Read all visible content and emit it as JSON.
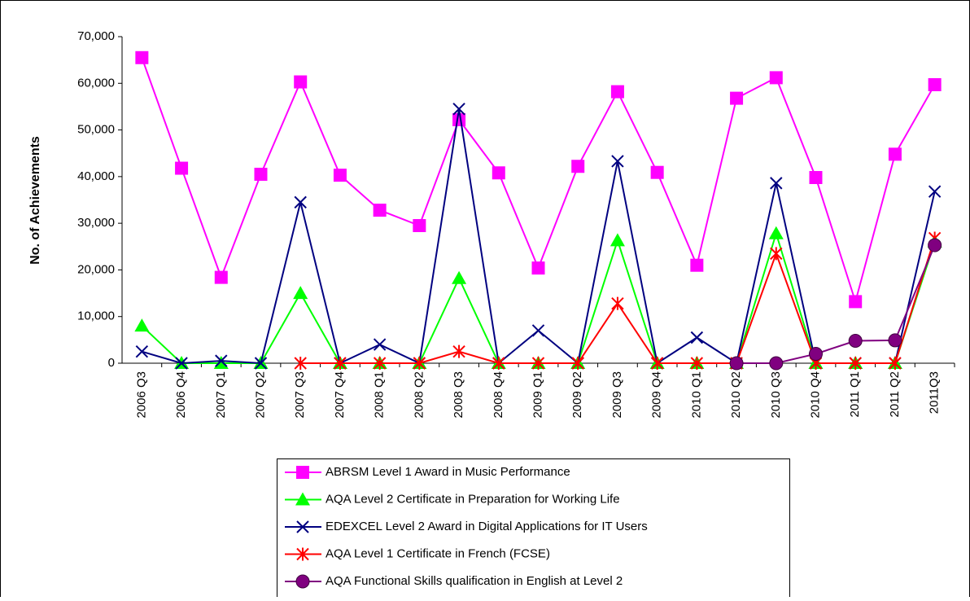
{
  "chart_data": {
    "type": "line",
    "y_label": "No. of Achievements",
    "categories": [
      "2006 Q3",
      "2006 Q4",
      "2007 Q1",
      "2007 Q2",
      "2007 Q3",
      "2007 Q4",
      "2008 Q1",
      "2008 Q2",
      "2008 Q3",
      "2008 Q4",
      "2009 Q1",
      "2009 Q2",
      "2009 Q3",
      "2009 Q4",
      "2010 Q1",
      "2010 Q2",
      "2010 Q3",
      "2010 Q4",
      "2011 Q1",
      "2011 Q2",
      "2011Q3"
    ],
    "ylim": [
      0,
      70000
    ],
    "yticks": [
      0,
      {
        "value": 10000,
        "label": "10,000"
      },
      {
        "value": 20000,
        "label": "20,000"
      },
      {
        "value": 30000,
        "label": "30,000"
      },
      {
        "value": 40000,
        "label": "40,000"
      },
      {
        "value": 50000,
        "label": "50,000"
      },
      {
        "value": 60000,
        "label": "60,000"
      },
      {
        "value": 70000,
        "label": "70,000"
      }
    ],
    "series": [
      {
        "name": "ABRSM Level 1 Award in Music Performance",
        "color": "#ff00ff",
        "marker": "square",
        "values": [
          65500,
          41800,
          18400,
          40500,
          60300,
          40300,
          32800,
          29500,
          52200,
          40800,
          20400,
          42200,
          58200,
          40900,
          21000,
          56800,
          61200,
          39800,
          13200,
          44800,
          59700
        ]
      },
      {
        "name": "AQA Level 2 Certificate in Preparation for Working Life",
        "color": "#00ff00",
        "marker": "triangle",
        "values": [
          8000,
          0,
          0,
          0,
          15000,
          0,
          0,
          0,
          18200,
          0,
          0,
          0,
          26300,
          0,
          0,
          0,
          27800,
          0,
          0,
          0,
          26000
        ]
      },
      {
        "name": "EDEXCEL Level 2 Award in Digital Applications for IT Users",
        "color": "#000080",
        "marker": "x",
        "values": [
          2500,
          0,
          500,
          0,
          34500,
          0,
          4000,
          0,
          54500,
          0,
          7000,
          0,
          43300,
          0,
          5500,
          0,
          38600,
          0,
          0,
          0,
          36800
        ]
      },
      {
        "name": "AQA Level 1 Certificate in French (FCSE)",
        "color": "#ff0000",
        "marker": "star",
        "values": [
          null,
          null,
          null,
          null,
          0,
          0,
          0,
          0,
          2500,
          0,
          0,
          0,
          12800,
          0,
          0,
          0,
          23500,
          0,
          0,
          0,
          26800
        ]
      },
      {
        "name": "AQA Functional Skills qualification in English at Level 2",
        "color": "#800080",
        "marker": "circle",
        "values": [
          null,
          null,
          null,
          null,
          null,
          null,
          null,
          null,
          null,
          null,
          null,
          null,
          null,
          null,
          null,
          0,
          0,
          2000,
          4800,
          4900,
          25300
        ]
      }
    ]
  }
}
